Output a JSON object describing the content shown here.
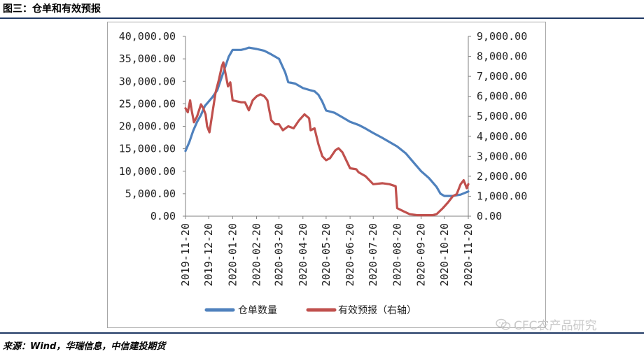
{
  "header": {
    "title": "图三：仓单和有效预报"
  },
  "footer": {
    "source": "来源：Wind，华瑞信息，中信建投期货"
  },
  "watermark": {
    "text": "CFC农产品研究",
    "icon": "wechat-icon"
  },
  "colors": {
    "series1": "#4f81bd",
    "series2": "#c0504d",
    "rule": "#1f3864"
  },
  "chart_data": {
    "type": "line",
    "legend_position": "bottom",
    "grid": false,
    "x_ticks": [
      "2019-11-20",
      "2019-12-20",
      "2020-01-20",
      "2020-02-20",
      "2020-03-20",
      "2020-04-20",
      "2020-05-20",
      "2020-06-20",
      "2020-07-20",
      "2020-08-20",
      "2020-09-20",
      "2020-10-20",
      "2020-11-20"
    ],
    "y_left": {
      "ticks": [
        "0.00",
        "5,000.00",
        "10,000.00",
        "15,000.00",
        "20,000.00",
        "25,000.00",
        "30,000.00",
        "35,000.00",
        "40,000.00"
      ],
      "ylim": [
        0,
        40000
      ]
    },
    "y_right": {
      "ticks": [
        "0.00",
        "1,000.00",
        "2,000.00",
        "3,000.00",
        "4,000.00",
        "5,000.00",
        "6,000.00",
        "7,000.00",
        "8,000.00",
        "9,000.00"
      ],
      "ylim": [
        0,
        9000
      ]
    },
    "series": [
      {
        "name": "仓单数量",
        "axis": "left",
        "color": "#4f81bd",
        "points": [
          [
            "2019-11-20",
            14500
          ],
          [
            "2019-11-25",
            16500
          ],
          [
            "2019-11-30",
            19000
          ],
          [
            "2019-12-05",
            21000
          ],
          [
            "2019-12-10",
            22500
          ],
          [
            "2019-12-15",
            24500
          ],
          [
            "2019-12-20",
            25500
          ],
          [
            "2019-12-25",
            26500
          ],
          [
            "2019-12-31",
            28000
          ],
          [
            "2020-01-05",
            30500
          ],
          [
            "2020-01-10",
            33000
          ],
          [
            "2020-01-15",
            35500
          ],
          [
            "2020-01-20",
            37000
          ],
          [
            "2020-01-31",
            37000
          ],
          [
            "2020-02-05",
            37200
          ],
          [
            "2020-02-10",
            37500
          ],
          [
            "2020-02-20",
            37200
          ],
          [
            "2020-03-01",
            36800
          ],
          [
            "2020-03-10",
            36000
          ],
          [
            "2020-03-20",
            35000
          ],
          [
            "2020-03-28",
            32000
          ],
          [
            "2020-04-01",
            29800
          ],
          [
            "2020-04-10",
            29500
          ],
          [
            "2020-04-20",
            28500
          ],
          [
            "2020-04-30",
            28000
          ],
          [
            "2020-05-05",
            27800
          ],
          [
            "2020-05-10",
            27000
          ],
          [
            "2020-05-15",
            25500
          ],
          [
            "2020-05-20",
            23500
          ],
          [
            "2020-05-31",
            23000
          ],
          [
            "2020-06-10",
            22000
          ],
          [
            "2020-06-20",
            21000
          ],
          [
            "2020-07-01",
            20300
          ],
          [
            "2020-07-10",
            19500
          ],
          [
            "2020-07-20",
            18500
          ],
          [
            "2020-07-31",
            17500
          ],
          [
            "2020-08-10",
            16500
          ],
          [
            "2020-08-20",
            15500
          ],
          [
            "2020-08-31",
            14000
          ],
          [
            "2020-09-10",
            12000
          ],
          [
            "2020-09-20",
            10000
          ],
          [
            "2020-09-30",
            8500
          ],
          [
            "2020-10-10",
            6500
          ],
          [
            "2020-10-15",
            5000
          ],
          [
            "2020-10-20",
            4500
          ],
          [
            "2020-10-31",
            4500
          ],
          [
            "2020-11-10",
            4800
          ],
          [
            "2020-11-20",
            5500
          ]
        ]
      },
      {
        "name": "有效预报（右轴）",
        "axis": "right",
        "color": "#c0504d",
        "points": [
          [
            "2019-11-20",
            5400
          ],
          [
            "2019-11-23",
            5200
          ],
          [
            "2019-11-26",
            5800
          ],
          [
            "2019-11-28",
            5300
          ],
          [
            "2019-12-01",
            4700
          ],
          [
            "2019-12-05",
            5000
          ],
          [
            "2019-12-10",
            5600
          ],
          [
            "2019-12-13",
            5400
          ],
          [
            "2019-12-16",
            5100
          ],
          [
            "2019-12-18",
            4500
          ],
          [
            "2019-12-21",
            4200
          ],
          [
            "2019-12-25",
            5200
          ],
          [
            "2019-12-29",
            6200
          ],
          [
            "2020-01-02",
            6800
          ],
          [
            "2020-01-06",
            7500
          ],
          [
            "2020-01-08",
            7700
          ],
          [
            "2020-01-11",
            7100
          ],
          [
            "2020-01-14",
            6500
          ],
          [
            "2020-01-17",
            6700
          ],
          [
            "2020-01-20",
            5800
          ],
          [
            "2020-01-31",
            5700
          ],
          [
            "2020-02-05",
            5700
          ],
          [
            "2020-02-10",
            5300
          ],
          [
            "2020-02-15",
            5800
          ],
          [
            "2020-02-20",
            6000
          ],
          [
            "2020-02-25",
            6100
          ],
          [
            "2020-03-01",
            6000
          ],
          [
            "2020-03-05",
            5800
          ],
          [
            "2020-03-10",
            4800
          ],
          [
            "2020-03-15",
            4600
          ],
          [
            "2020-03-20",
            4600
          ],
          [
            "2020-03-25",
            4300
          ],
          [
            "2020-04-01",
            4500
          ],
          [
            "2020-04-08",
            4400
          ],
          [
            "2020-04-15",
            4800
          ],
          [
            "2020-04-22",
            5100
          ],
          [
            "2020-04-28",
            4900
          ],
          [
            "2020-04-30",
            4300
          ],
          [
            "2020-05-05",
            4400
          ],
          [
            "2020-05-10",
            3600
          ],
          [
            "2020-05-15",
            3000
          ],
          [
            "2020-05-20",
            2800
          ],
          [
            "2020-05-25",
            2900
          ],
          [
            "2020-06-01",
            3300
          ],
          [
            "2020-06-05",
            3400
          ],
          [
            "2020-06-10",
            3200
          ],
          [
            "2020-06-15",
            2800
          ],
          [
            "2020-06-20",
            2400
          ],
          [
            "2020-06-28",
            2350
          ],
          [
            "2020-07-01",
            2200
          ],
          [
            "2020-07-10",
            2000
          ],
          [
            "2020-07-20",
            1600
          ],
          [
            "2020-08-01",
            1650
          ],
          [
            "2020-08-10",
            1600
          ],
          [
            "2020-08-18",
            1500
          ],
          [
            "2020-08-20",
            400
          ],
          [
            "2020-08-28",
            250
          ],
          [
            "2020-09-05",
            100
          ],
          [
            "2020-09-15",
            50
          ],
          [
            "2020-09-25",
            50
          ],
          [
            "2020-10-05",
            50
          ],
          [
            "2020-10-10",
            100
          ],
          [
            "2020-10-18",
            400
          ],
          [
            "2020-10-25",
            700
          ],
          [
            "2020-10-31",
            1000
          ],
          [
            "2020-11-05",
            1100
          ],
          [
            "2020-11-10",
            1600
          ],
          [
            "2020-11-14",
            1800
          ],
          [
            "2020-11-18",
            1400
          ],
          [
            "2020-11-20",
            1600
          ]
        ]
      }
    ]
  }
}
